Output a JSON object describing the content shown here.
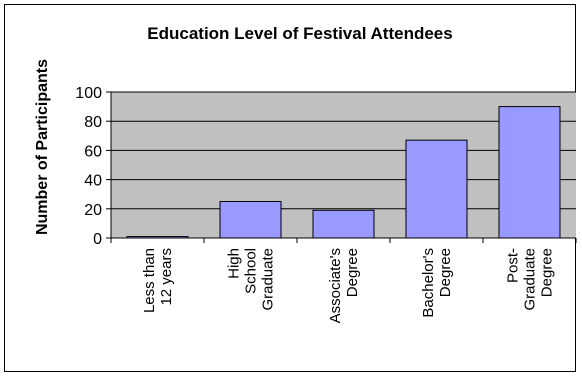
{
  "chart_data": {
    "type": "bar",
    "title": "Education Level of Festival Attendees",
    "ylabel": "Number of Participants",
    "xlabel": "",
    "ylim": [
      0,
      100
    ],
    "yticks": [
      0,
      20,
      40,
      60,
      80,
      100
    ],
    "grid": true,
    "categories": [
      [
        "Less than",
        "12 years"
      ],
      [
        "High",
        "School",
        "Graduate"
      ],
      [
        "Associate's",
        "Degree"
      ],
      [
        "Bachelor's",
        "Degree"
      ],
      [
        "Post-",
        "Graduate",
        "Degree"
      ]
    ],
    "values": [
      1,
      25,
      19,
      67,
      90
    ]
  },
  "colors": {
    "plot_bg": "#c0c0c0",
    "bar_fill": "#9999ff",
    "bar_stroke": "#000000"
  }
}
